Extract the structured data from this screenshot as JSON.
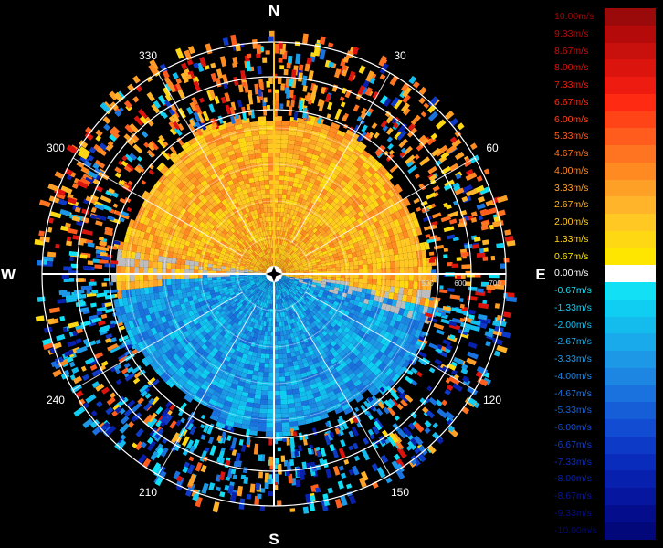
{
  "cardinals": {
    "north": "N",
    "east": "E",
    "south": "S",
    "west": "W"
  },
  "azimuth_labels": [
    {
      "angle": 30,
      "text": "30"
    },
    {
      "angle": 60,
      "text": "60"
    },
    {
      "angle": 120,
      "text": "120"
    },
    {
      "angle": 150,
      "text": "150"
    },
    {
      "angle": 210,
      "text": "210"
    },
    {
      "angle": 240,
      "text": "240"
    },
    {
      "angle": 300,
      "text": "300"
    },
    {
      "angle": 330,
      "text": "330"
    }
  ],
  "range_labels": [
    {
      "range": 500,
      "text": "500"
    },
    {
      "range": 600,
      "text": "600"
    },
    {
      "range": 700,
      "text": "700"
    }
  ],
  "legend": [
    {
      "label": "10.00m/s",
      "color": "#9a0a0a"
    },
    {
      "label": "9.33m/s",
      "color": "#b40a0a"
    },
    {
      "label": "8.67m/s",
      "color": "#c8100c"
    },
    {
      "label": "8.00m/s",
      "color": "#dc140e"
    },
    {
      "label": "7.33m/s",
      "color": "#ee1c10"
    },
    {
      "label": "6.67m/s",
      "color": "#ff2a12"
    },
    {
      "label": "6.00m/s",
      "color": "#ff4418"
    },
    {
      "label": "5.33m/s",
      "color": "#ff5c1e"
    },
    {
      "label": "4.67m/s",
      "color": "#ff7420"
    },
    {
      "label": "4.00m/s",
      "color": "#ff8a22"
    },
    {
      "label": "3.33m/s",
      "color": "#ffa026"
    },
    {
      "label": "2.67m/s",
      "color": "#ffb42a"
    },
    {
      "label": "2.00m/s",
      "color": "#ffc822"
    },
    {
      "label": "1.33m/s",
      "color": "#ffd814"
    },
    {
      "label": "0.67m/s",
      "color": "#ffe600"
    },
    {
      "label": "0.00m/s",
      "color": "#ffffff"
    },
    {
      "label": "-0.67m/s",
      "color": "#12e0f4"
    },
    {
      "label": "-1.33m/s",
      "color": "#10cdf2"
    },
    {
      "label": "-2.00m/s",
      "color": "#14bcee"
    },
    {
      "label": "-2.67m/s",
      "color": "#18aaea"
    },
    {
      "label": "-3.33m/s",
      "color": "#1c98e6"
    },
    {
      "label": "-4.00m/s",
      "color": "#1c86e2"
    },
    {
      "label": "-4.67m/s",
      "color": "#1a72de"
    },
    {
      "label": "-5.33m/s",
      "color": "#165ed8"
    },
    {
      "label": "-6.00m/s",
      "color": "#124cd2"
    },
    {
      "label": "-6.67m/s",
      "color": "#0e3ac8"
    },
    {
      "label": "-7.33m/s",
      "color": "#0a2cbc"
    },
    {
      "label": "-8.00m/s",
      "color": "#0820ae"
    },
    {
      "label": "-8.67m/s",
      "color": "#06169e"
    },
    {
      "label": "-9.33m/s",
      "color": "#040e8c"
    },
    {
      "label": "-10.00m/s",
      "color": "#02087a"
    }
  ]
}
